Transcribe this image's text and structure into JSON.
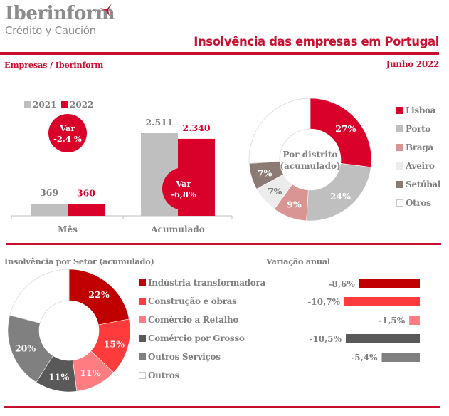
{
  "header": {
    "logo_main": "Iberinform",
    "logo_sub": "Crédito y Caución",
    "title": "Insolvência das empresas em Portugal",
    "subtitle_left": "Empresas / Iberinform",
    "subtitle_right": "Junho 2022"
  },
  "colors": {
    "brand_red": "#c8102e",
    "gray_2021": "#bfbfbf",
    "red_2022": "#d9002a"
  },
  "chart_data": [
    {
      "id": "monthly_vs_accumulated",
      "type": "bar",
      "categories": [
        "Mês",
        "Acumulado"
      ],
      "series": [
        {
          "name": "2021",
          "values": [
            369,
            2511
          ],
          "labels": [
            "369",
            "2.511"
          ],
          "color": "#bfbfbf"
        },
        {
          "name": "2022",
          "values": [
            360,
            2340
          ],
          "labels": [
            "360",
            "2.340"
          ],
          "color": "#d9002a"
        }
      ],
      "annotations": [
        {
          "category": "Mês",
          "line1": "Var",
          "line2": "-2,4 %"
        },
        {
          "category": "Acumulado",
          "line1": "Var",
          "line2": "-6,8%"
        }
      ],
      "legend": [
        "2021",
        "2022"
      ],
      "legend_position": "top-left",
      "ylim": [
        0,
        2600
      ]
    },
    {
      "id": "by_district",
      "type": "pie",
      "donut": true,
      "center_label": [
        "Por distrito",
        "(acumulado)"
      ],
      "slices": [
        {
          "name": "Lisboa",
          "value": 27,
          "label": "27%",
          "color": "#d9002a",
          "text_color": "#ffffff"
        },
        {
          "name": "Porto",
          "value": 24,
          "label": "24%",
          "color": "#bfbfbf",
          "text_color": "#ffffff"
        },
        {
          "name": "Braga",
          "value": 9,
          "label": "9%",
          "color": "#d99594",
          "text_color": "#ffffff"
        },
        {
          "name": "Aveiro",
          "value": 7,
          "label": "7%",
          "color": "#ececec",
          "text_color": "#7f7f7f"
        },
        {
          "name": "Setúbal",
          "value": 7,
          "label": "7%",
          "color": "#8c7b75",
          "text_color": "#ffffff"
        },
        {
          "name": "Otros",
          "value": 26,
          "label": "",
          "color": "#ffffff",
          "text_color": "#7f7f7f"
        }
      ],
      "legend_position": "right"
    },
    {
      "id": "by_sector",
      "type": "pie",
      "donut": true,
      "title": "Insolvência por Setor (acumulado)",
      "slices": [
        {
          "name": "Indústria transformadora",
          "value": 22,
          "label": "22%",
          "color": "#c00000"
        },
        {
          "name": "Construção e obras",
          "value": 15,
          "label": "15%",
          "color": "#ff3b3b"
        },
        {
          "name": "Comércio a Retalho",
          "value": 11,
          "label": "11%",
          "color": "#ff7c80"
        },
        {
          "name": "Comércio por Grosso",
          "value": 11,
          "label": "11%",
          "color": "#595959"
        },
        {
          "name": "Outros Serviços",
          "value": 20,
          "label": "20%",
          "color": "#808080"
        },
        {
          "name": "Outros",
          "value": 21,
          "label": "",
          "color": "#ffffff"
        }
      ],
      "legend_position": "right"
    },
    {
      "id": "annual_variation",
      "type": "bar",
      "orientation": "horizontal",
      "title": "Variação anual",
      "categories": [
        "Indústria transformadora",
        "Construção e obras",
        "Comércio a Retalho",
        "Comércio por Grosso",
        "Outros Serviços"
      ],
      "values": [
        -8.6,
        -10.7,
        -1.5,
        -10.5,
        -5.4
      ],
      "labels": [
        "-8,6%",
        "-10,7%",
        "-1,5%",
        "-10,5%",
        "-5,4%"
      ],
      "colors": [
        "#c00000",
        "#ff3b3b",
        "#ff7c80",
        "#595959",
        "#808080"
      ],
      "xlim": [
        -10.7,
        0
      ]
    }
  ]
}
